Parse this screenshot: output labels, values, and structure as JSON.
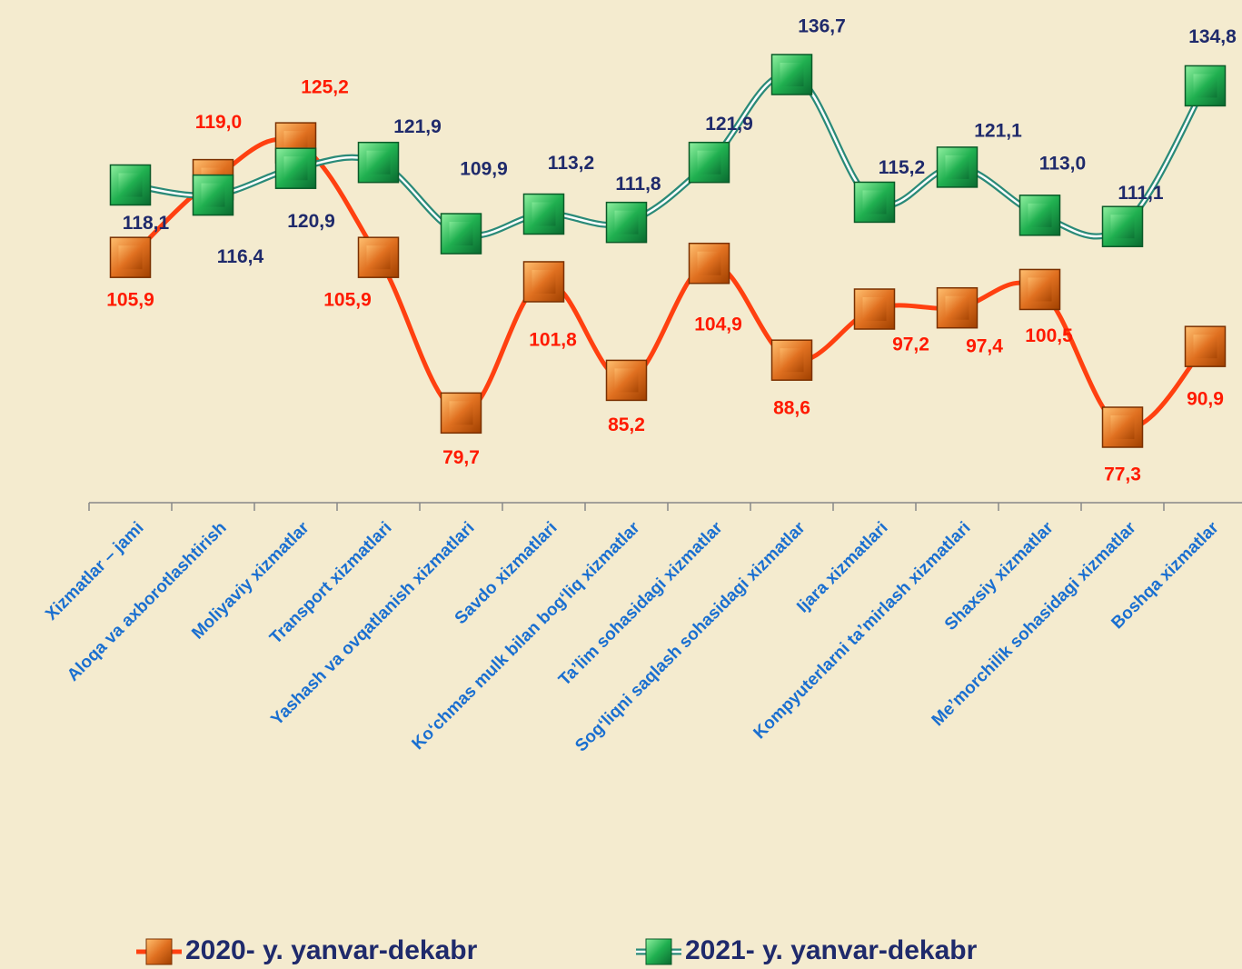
{
  "chart_data": {
    "type": "line",
    "categories": [
      "Xizmatlar – jami",
      "Aloqa va axborotlashtirish",
      "Moliyaviy xizmatlar",
      "Transport xizmatlari",
      "Yashash va ovqatlanish xizmatlari",
      "Savdo xizmatlari",
      "Ko‘chmas mulk bilan bog‘liq xizmatlar",
      "Ta’lim sohasidagi xizmatlar",
      "Sog‘liqni saqlash sohasidagi xizmatlar",
      "Ijara xizmatlari",
      "Kompyuterlarni ta’mirlash xizmatlari",
      "Shaxsiy xizmatlar",
      "Me’morchilik sohasidagi xizmatlar",
      "Boshqa xizmatlar"
    ],
    "series": [
      {
        "name": "2020- y. yanvar-dekabr",
        "color": "#ff4010",
        "values": [
          105.9,
          119.0,
          125.2,
          105.9,
          79.7,
          101.8,
          85.2,
          104.9,
          88.6,
          97.2,
          97.4,
          100.5,
          77.3,
          90.9
        ],
        "value_labels": [
          "105,9",
          "119,0",
          "125,2",
          "105,9",
          "79,7",
          "101,8",
          "85,2",
          "104,9",
          "88,6",
          "97,2",
          "97,4",
          "100,5",
          "77,3",
          "90,9"
        ]
      },
      {
        "name": "2021- y. yanvar-dekabr",
        "color": "#2a8a78",
        "values": [
          118.1,
          116.4,
          120.9,
          121.9,
          109.9,
          113.2,
          111.8,
          121.9,
          136.7,
          115.2,
          121.1,
          113.0,
          111.1,
          134.8
        ],
        "value_labels": [
          "118,1",
          "116,4",
          "120,9",
          "121,9",
          "109,9",
          "113,2",
          "111,8",
          "121,9",
          "136,7",
          "115,2",
          "121,1",
          "113,0",
          "111,1",
          "134,8"
        ]
      }
    ],
    "legend": "bottom"
  }
}
